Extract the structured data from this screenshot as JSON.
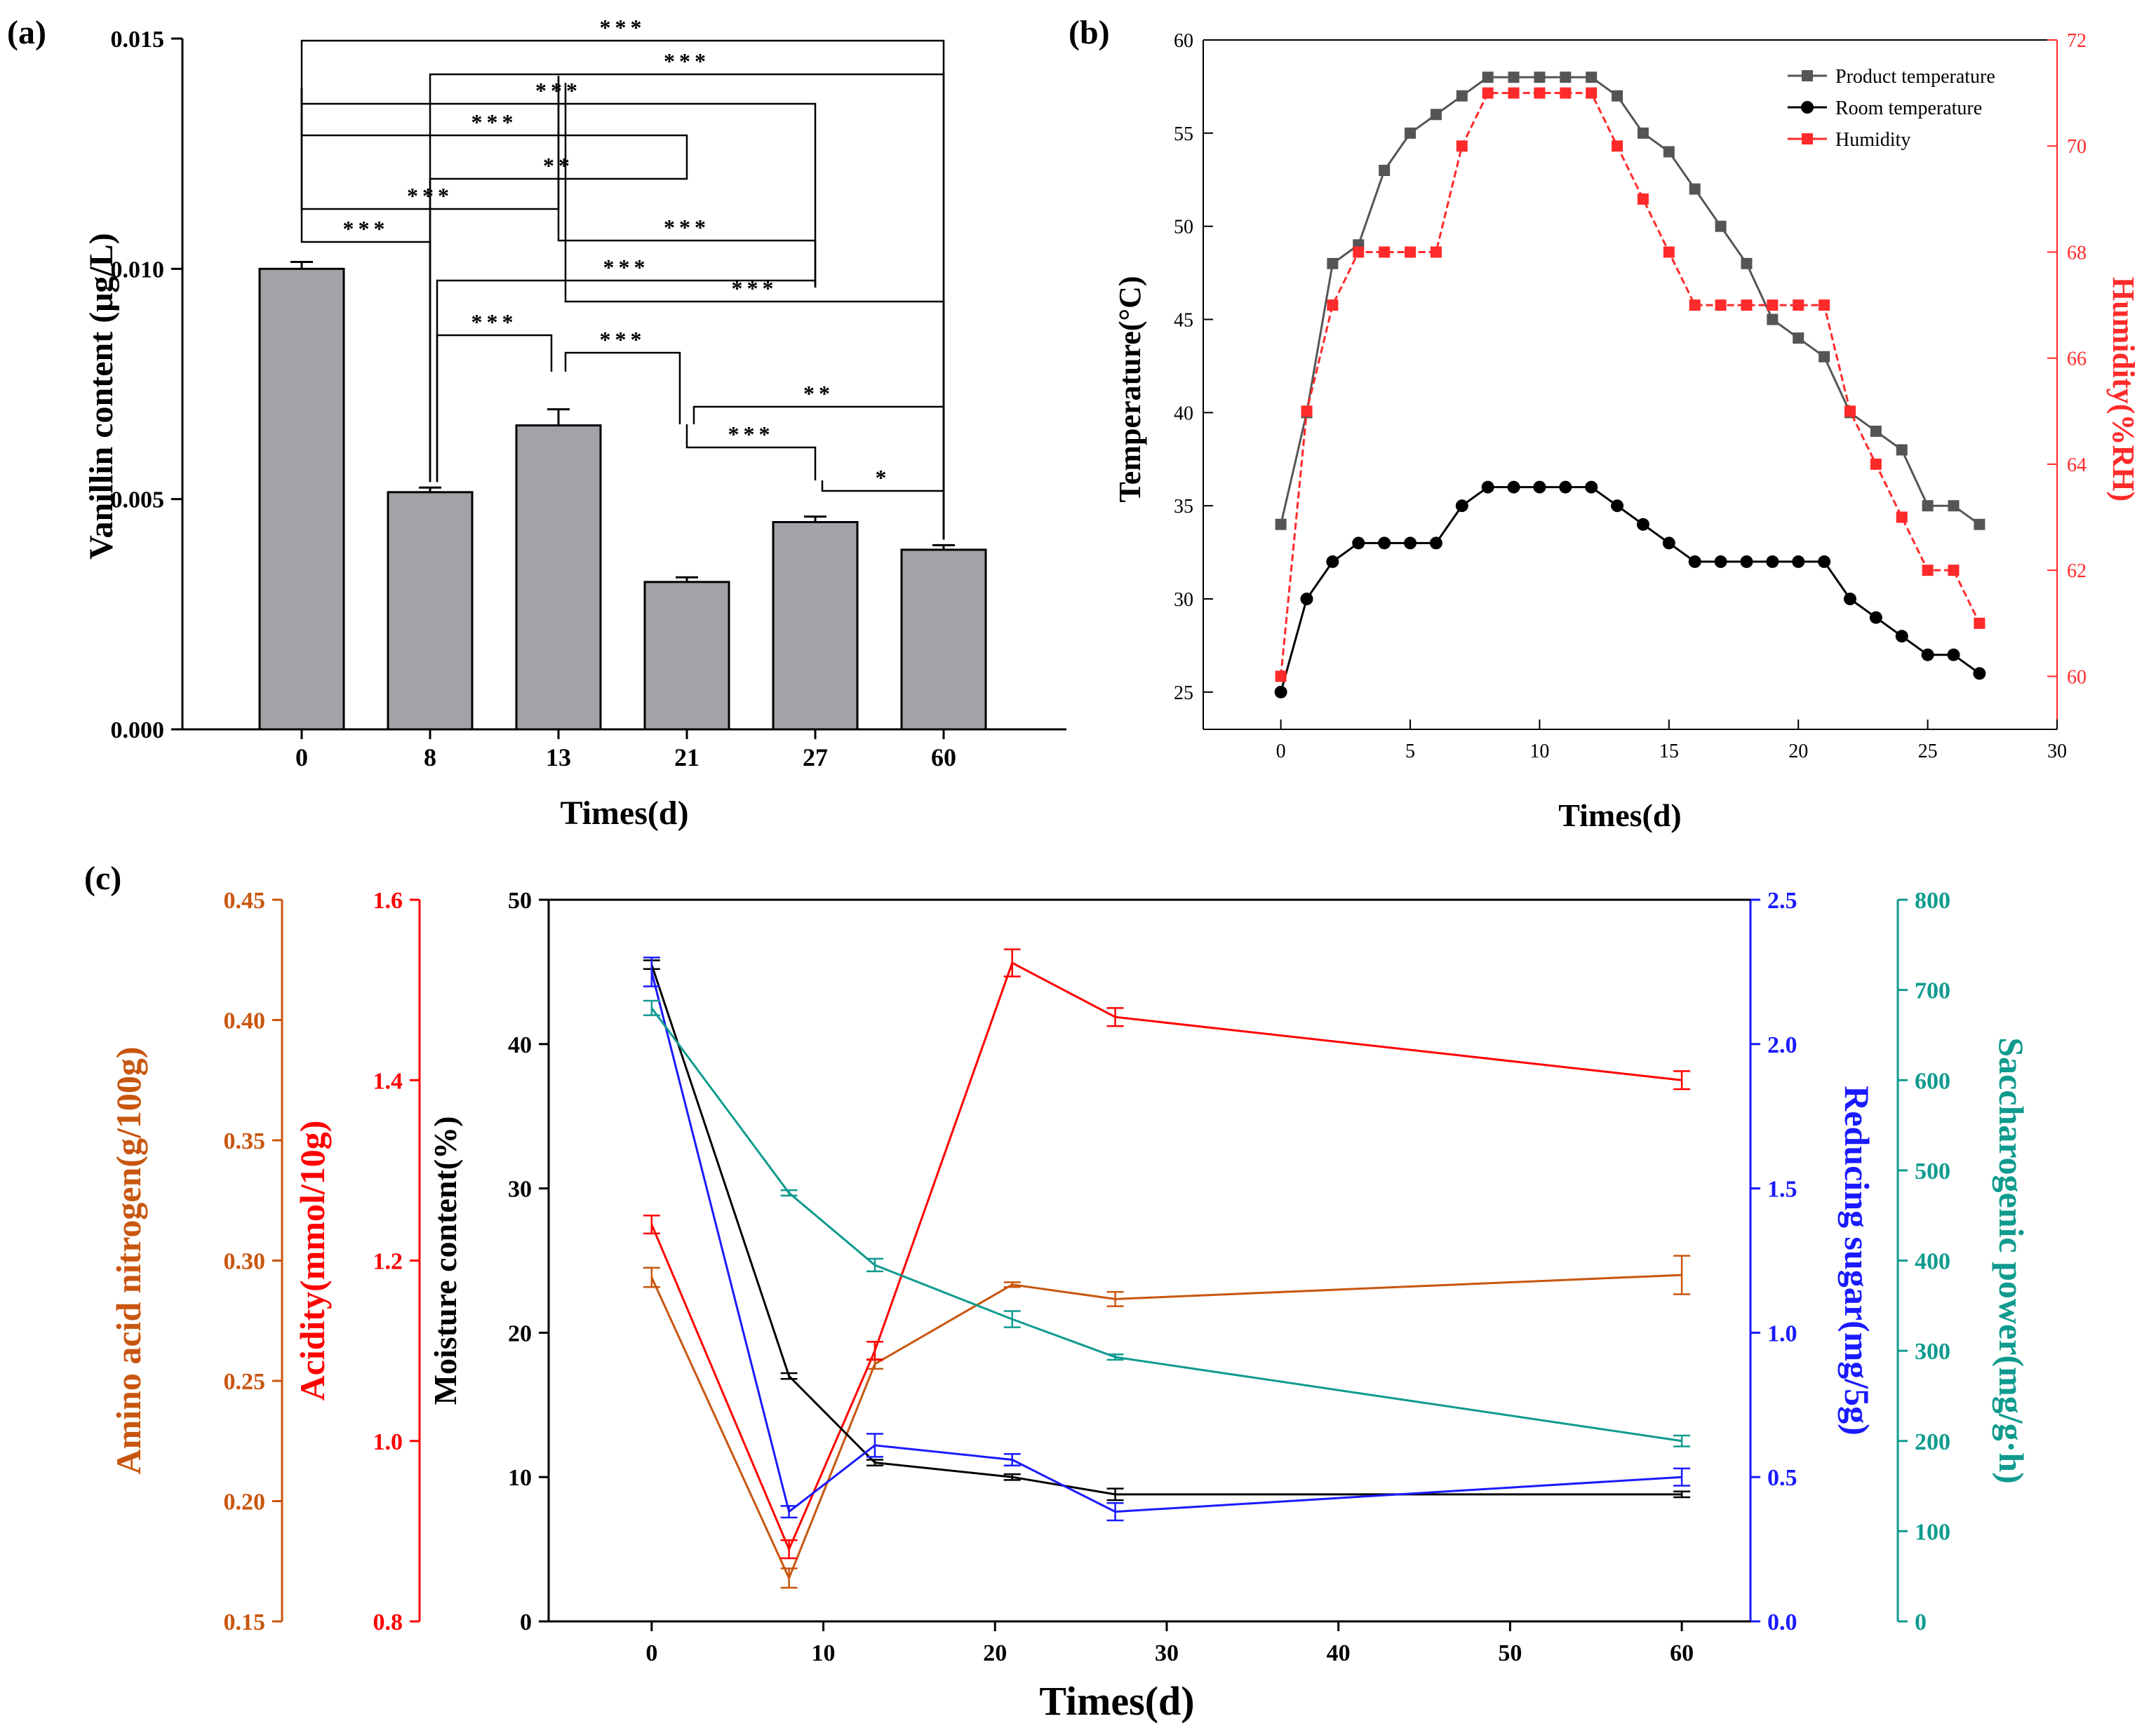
{
  "chart_data": [
    {
      "panel": "(a)",
      "type": "bar",
      "xlabel": "Times(d)",
      "ylabel": "Vanillin content (μg/L)",
      "categories": [
        "0",
        "8",
        "13",
        "21",
        "27",
        "60"
      ],
      "values": [
        0.01,
        0.00515,
        0.0066,
        0.0032,
        0.0045,
        0.0039
      ],
      "errors": [
        0.00015,
        0.0001,
        0.00035,
        0.0001,
        0.00012,
        0.0001
      ],
      "ylim": [
        0,
        0.015
      ],
      "yticks": [
        "0.000",
        "0.005",
        "0.010",
        "0.015"
      ],
      "bar_color": "#a3a2a7",
      "significance": [
        {
          "from": "0",
          "to": "60",
          "label": "***"
        },
        {
          "from": "8",
          "to": "60",
          "label": "***"
        },
        {
          "from": "0",
          "to": "27",
          "label": "***"
        },
        {
          "from": "0",
          "to": "21",
          "label": "***"
        },
        {
          "from": "8",
          "to": "21",
          "label": "**"
        },
        {
          "from": "0",
          "to": "13",
          "label": "***"
        },
        {
          "from": "13",
          "to": "27",
          "label": "***"
        },
        {
          "from": "0",
          "to": "8",
          "label": "***"
        },
        {
          "from": "8",
          "to": "27",
          "label": "***"
        },
        {
          "from": "13",
          "to": "60",
          "label": "***"
        },
        {
          "from": "8",
          "to": "13",
          "label": "***"
        },
        {
          "from": "13",
          "to": "21",
          "label": "***"
        },
        {
          "from": "21",
          "to": "60",
          "label": "**"
        },
        {
          "from": "21",
          "to": "27",
          "label": "***"
        },
        {
          "from": "27",
          "to": "60",
          "label": "*"
        }
      ]
    },
    {
      "panel": "(b)",
      "type": "line",
      "xlabel": "Times(d)",
      "ylabel": "Temperature(°C)",
      "ylabel_right": "Humidity(%RH)",
      "xlim": [
        -3,
        30
      ],
      "ylim": [
        23,
        60
      ],
      "ylim_right": [
        59,
        72
      ],
      "xticks": [
        "0",
        "5",
        "10",
        "15",
        "20",
        "25",
        "30"
      ],
      "yticks": [
        "25",
        "30",
        "35",
        "40",
        "45",
        "50",
        "55",
        "60"
      ],
      "yticks_right": [
        "60",
        "62",
        "64",
        "66",
        "68",
        "70",
        "72"
      ],
      "x": [
        0,
        1,
        2,
        3,
        4,
        5,
        6,
        7,
        8,
        9,
        10,
        11,
        12,
        13,
        14,
        15,
        16,
        17,
        18,
        19,
        20,
        21,
        22,
        23,
        24,
        25,
        26,
        27
      ],
      "series": [
        {
          "name": "Product temperature",
          "axis": "left",
          "color": "#555555",
          "marker": "square",
          "values": [
            34,
            40,
            48,
            49,
            53,
            55,
            56,
            57,
            58,
            58,
            58,
            58,
            58,
            57,
            55,
            54,
            52,
            50,
            48,
            45,
            44,
            43,
            40,
            39,
            38,
            35,
            35,
            34
          ]
        },
        {
          "name": "Room temperature",
          "axis": "left",
          "color": "#000000",
          "marker": "circle",
          "values": [
            25,
            30,
            32,
            33,
            33,
            33,
            33,
            35,
            36,
            36,
            36,
            36,
            36,
            35,
            34,
            33,
            32,
            32,
            32,
            32,
            32,
            32,
            30,
            29,
            28,
            27,
            27,
            26
          ]
        },
        {
          "name": "Humidity",
          "axis": "right",
          "color": "#ff2a2a",
          "marker": "square",
          "values": [
            60,
            65,
            67,
            68,
            68,
            68,
            68,
            70,
            71,
            71,
            71,
            71,
            71,
            70,
            69,
            68,
            67,
            67,
            67,
            67,
            67,
            67,
            65,
            64,
            63,
            62,
            62,
            61
          ]
        }
      ]
    },
    {
      "panel": "(c)",
      "type": "line",
      "xlabel": "Times(d)",
      "xlim": [
        -6,
        64
      ],
      "xticks": [
        "0",
        "10",
        "20",
        "30",
        "40",
        "50",
        "60"
      ],
      "x": [
        0,
        8,
        13,
        21,
        27,
        60
      ],
      "axes": [
        {
          "id": "amino",
          "label": "Amino acid nitrogen(g/100g)",
          "color": "#c8560f",
          "ylim": [
            0.15,
            0.45
          ],
          "ticks": [
            "0.15",
            "0.20",
            "0.25",
            "0.30",
            "0.35",
            "0.40",
            "0.45"
          ]
        },
        {
          "id": "acid",
          "label": "Acidity(mmol/10g)",
          "color": "#ff0000",
          "ylim": [
            0.8,
            1.6
          ],
          "ticks": [
            "0.8",
            "1.0",
            "1.2",
            "1.4",
            "1.6"
          ]
        },
        {
          "id": "moist",
          "label": "Moisture content(%)",
          "color": "#000000",
          "ylim": [
            0,
            50
          ],
          "ticks": [
            "0",
            "10",
            "20",
            "30",
            "40",
            "50"
          ]
        },
        {
          "id": "sugar",
          "label": "Reducing sugar(mg/5g)",
          "color": "#1a1aff",
          "ylim": [
            0,
            2.5
          ],
          "ticks": [
            "0.0",
            "0.5",
            "1.0",
            "1.5",
            "2.0",
            "2.5"
          ]
        },
        {
          "id": "sacch",
          "label": "Saccharogenic power(mg/g·h)",
          "color": "#0f9b8e",
          "ylim": [
            0,
            800
          ],
          "ticks": [
            "0",
            "100",
            "200",
            "300",
            "400",
            "500",
            "600",
            "700",
            "800"
          ]
        }
      ],
      "series": [
        {
          "name": "Amino acid nitrogen",
          "axis": "amino",
          "color": "#c8560f",
          "values": [
            0.293,
            0.168,
            0.257,
            0.29,
            0.284,
            0.294
          ],
          "errors": [
            0.004,
            0.004,
            0.002,
            0.001,
            0.003,
            0.008
          ]
        },
        {
          "name": "Acidity",
          "axis": "acid",
          "color": "#ff0000",
          "values": [
            1.24,
            0.88,
            1.1,
            1.53,
            1.47,
            1.4
          ],
          "errors": [
            0.01,
            0.01,
            0.01,
            0.015,
            0.01,
            0.01
          ]
        },
        {
          "name": "Moisture content",
          "axis": "moist",
          "color": "#000000",
          "values": [
            45.5,
            17.0,
            11.0,
            10.0,
            8.8,
            8.8
          ],
          "errors": [
            0.3,
            0.2,
            0.2,
            0.2,
            0.4,
            0.2
          ]
        },
        {
          "name": "Reducing sugar",
          "axis": "sugar",
          "color": "#1a1aff",
          "values": [
            2.25,
            0.38,
            0.61,
            0.56,
            0.38,
            0.5
          ],
          "errors": [
            0.05,
            0.02,
            0.04,
            0.02,
            0.03,
            0.03
          ]
        },
        {
          "name": "Saccharogenic power",
          "axis": "sacch",
          "color": "#0f9b8e",
          "values": [
            680,
            475,
            395,
            335,
            293,
            200
          ],
          "errors": [
            8,
            3,
            7,
            9,
            3,
            6
          ]
        }
      ]
    }
  ]
}
